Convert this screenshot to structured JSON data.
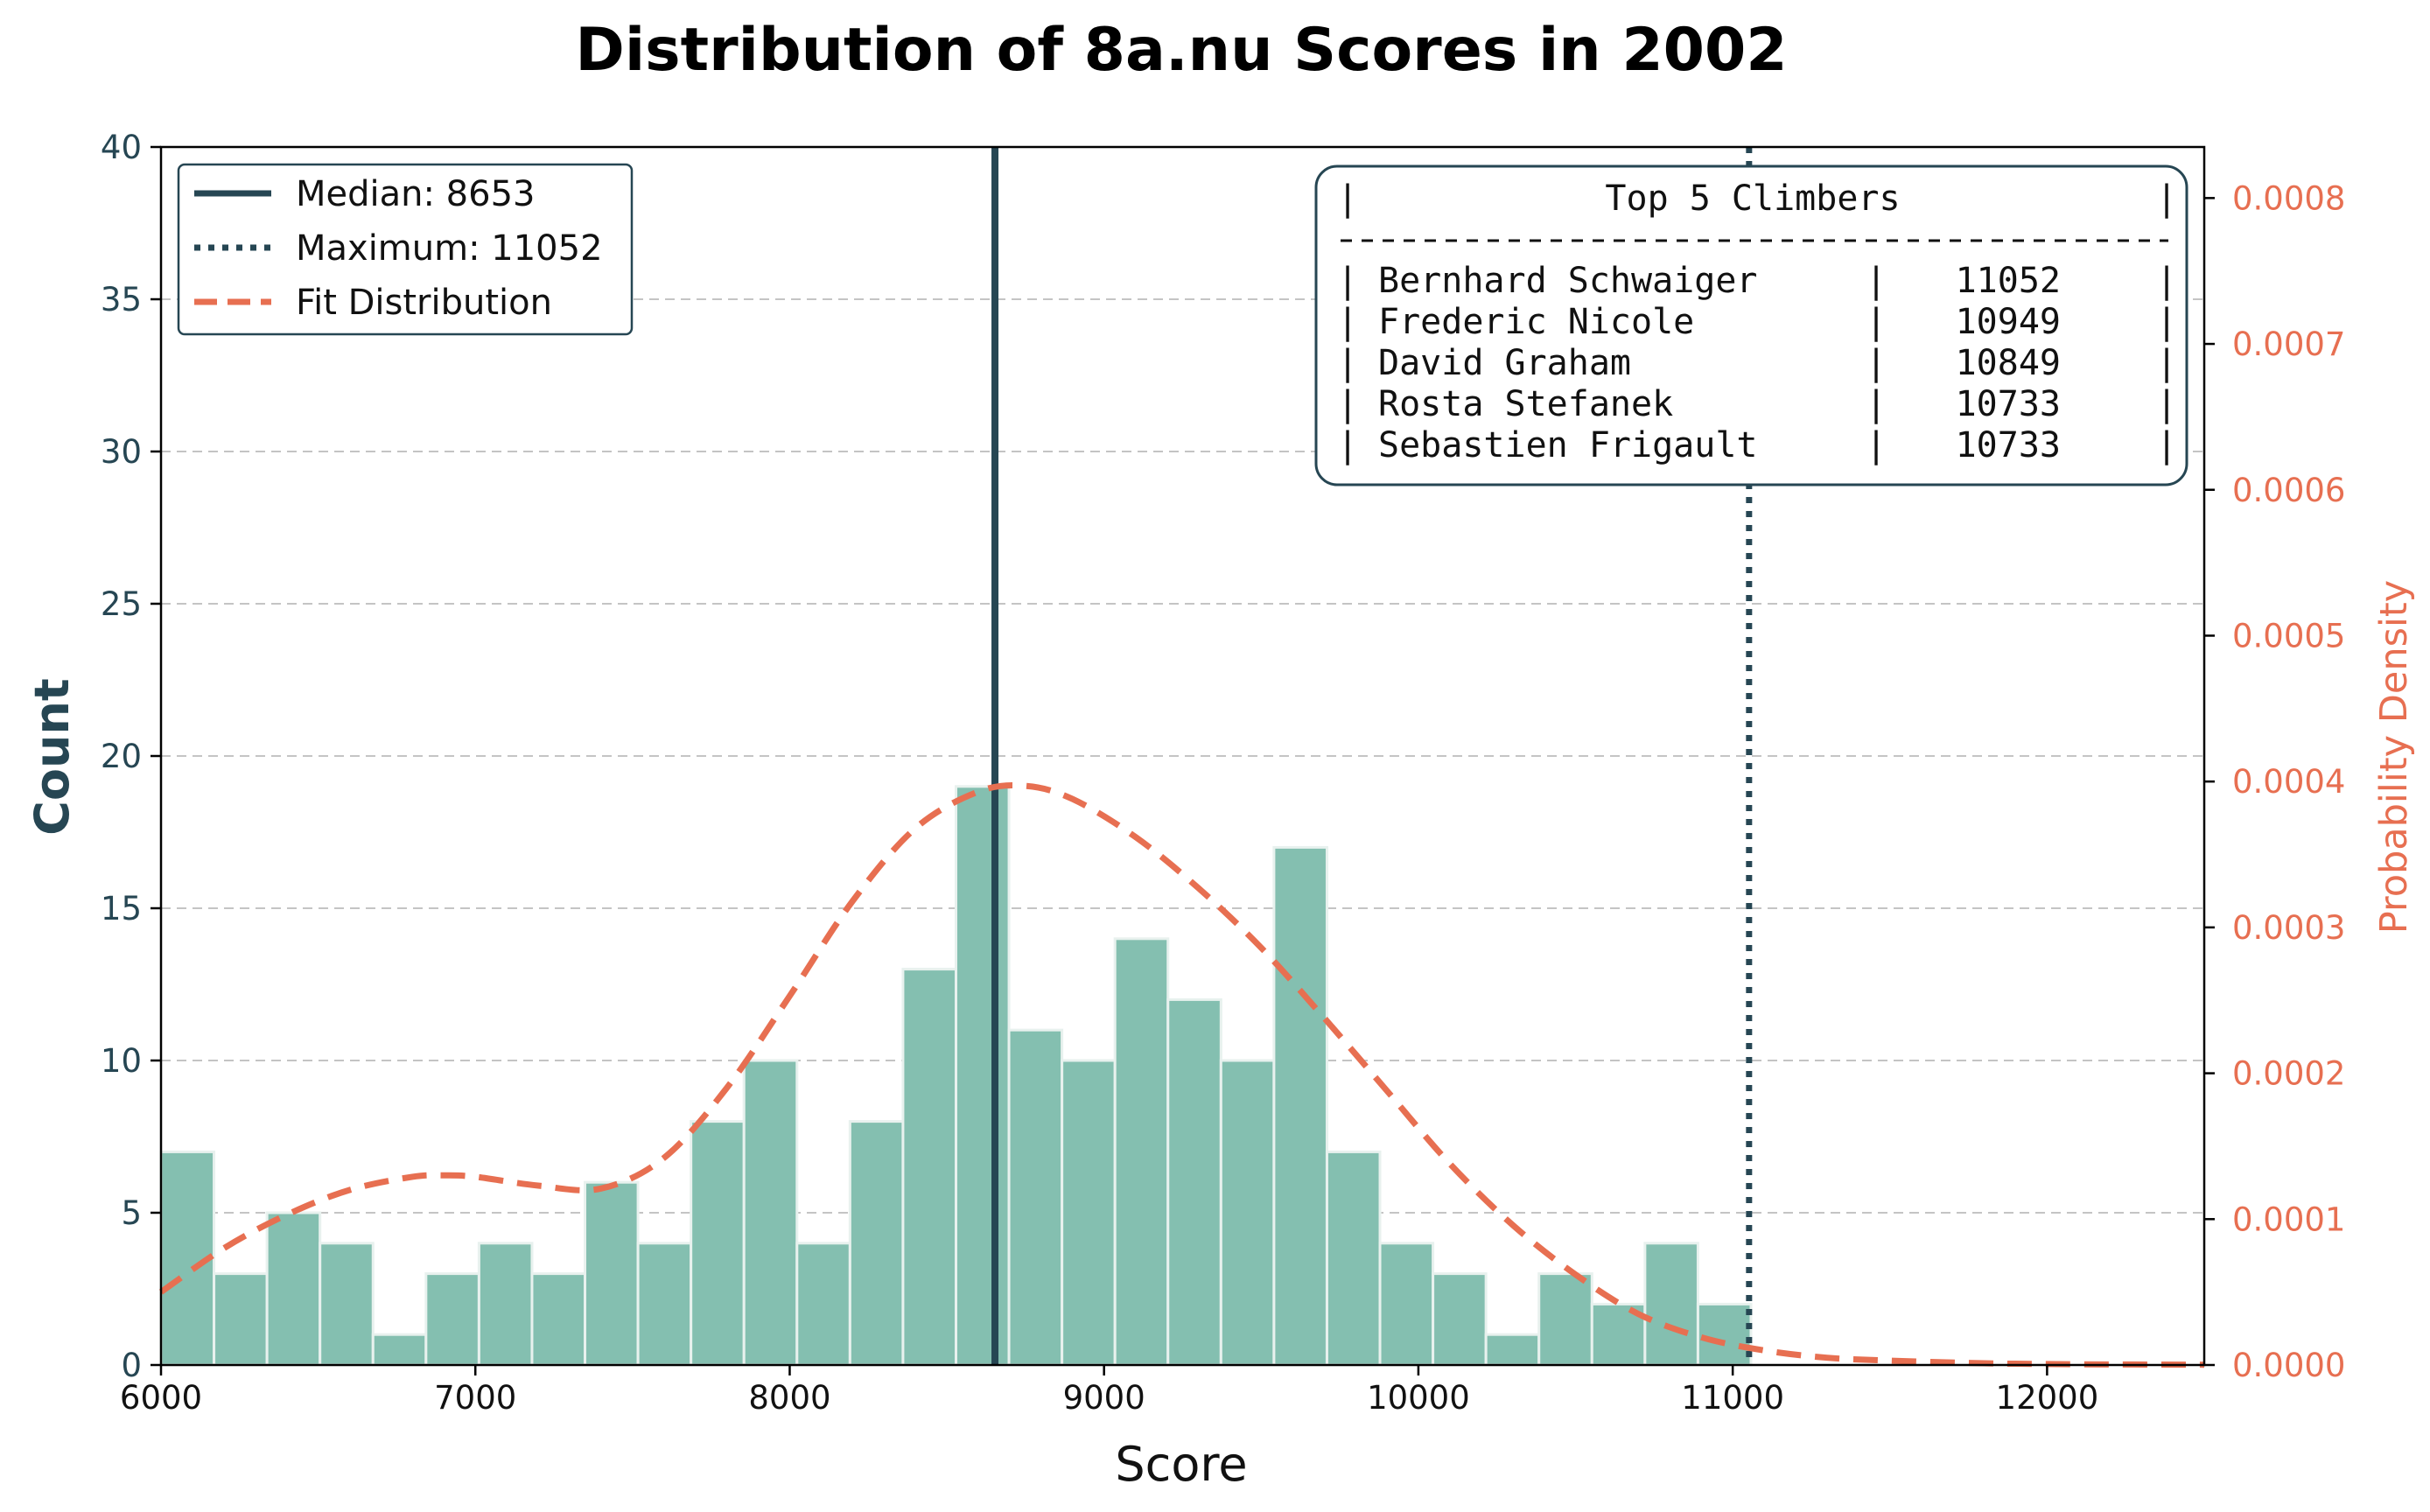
{
  "chart_data": {
    "type": "bar",
    "title": "Distribution of 8a.nu Scores in 2002",
    "xlabel": "Score",
    "ylabel": "Count",
    "y2label": "Probability Density",
    "xlim": [
      6000,
      12500
    ],
    "ylim": [
      0,
      40
    ],
    "y2lim": [
      0,
      0.000835
    ],
    "x_ticks": [
      6000,
      7000,
      8000,
      9000,
      10000,
      11000,
      12000
    ],
    "y_ticks": [
      0,
      5,
      10,
      15,
      20,
      25,
      30,
      35,
      40
    ],
    "y2_ticks": [
      "0.0000",
      "0.0001",
      "0.0002",
      "0.0003",
      "0.0004",
      "0.0005",
      "0.0006",
      "0.0007",
      "0.0008"
    ],
    "grid": "horizontal dashed",
    "bins": {
      "start": 6000,
      "width": 168.6,
      "counts": [
        7,
        3,
        5,
        4,
        1,
        3,
        4,
        3,
        6,
        4,
        8,
        10,
        4,
        8,
        13,
        19,
        11,
        10,
        14,
        12,
        10,
        17,
        7,
        4,
        3,
        1,
        3,
        2,
        4,
        2
      ]
    },
    "series": [
      {
        "name": "Fit Distribution",
        "type": "line",
        "axis": "right",
        "x": [
          6000,
          6200,
          6400,
          6600,
          6800,
          6900,
          7000,
          7200,
          7400,
          7600,
          7800,
          8000,
          8200,
          8400,
          8600,
          8750,
          8900,
          9100,
          9300,
          9500,
          9700,
          9900,
          10100,
          10300,
          10500,
          10700,
          10900,
          11100,
          11300,
          11500,
          11800,
          12100,
          12500
        ],
        "y": [
          5e-05,
          8e-05,
          0.000103,
          0.00012,
          0.000129,
          0.00013,
          0.000129,
          0.000123,
          0.000121,
          0.000142,
          0.00019,
          0.000253,
          0.000318,
          0.000368,
          0.000393,
          0.000397,
          0.000388,
          0.000362,
          0.000327,
          0.000286,
          0.000238,
          0.000188,
          0.000138,
          9.6e-05,
          6.2e-05,
          3.5e-05,
          1.9e-05,
          1e-05,
          5e-06,
          3e-06,
          1.2e-06,
          5e-07,
          2e-07
        ]
      }
    ],
    "reference_lines": {
      "median": {
        "label": "Median: 8653",
        "value": 8653
      },
      "maximum": {
        "label": "Maximum: 11052",
        "value": 11052
      }
    },
    "legend": {
      "placement": "top-left",
      "entries": [
        {
          "label": "Median: 8653",
          "style": "solid"
        },
        {
          "label": "Maximum: 11052",
          "style": "dotted"
        },
        {
          "label": "Fit Distribution",
          "style": "dashed"
        }
      ]
    },
    "table": {
      "placement": "top-right",
      "header": "Top 5 Climbers",
      "rows": [
        {
          "name": "Bernhard Schwaiger",
          "score": "11052"
        },
        {
          "name": "Frederic Nicole",
          "score": "10949"
        },
        {
          "name": "David Graham",
          "score": "10849"
        },
        {
          "name": "Rosta Stefanek",
          "score": "10733"
        },
        {
          "name": "Sebastien Frigault",
          "score": "10733"
        }
      ]
    },
    "colors": {
      "bar": "#84bfb0",
      "bar_edge": "#e8f1ee",
      "axis_dark": "#264653",
      "fit": "#e76f51",
      "grid": "#c4c4c4"
    }
  }
}
